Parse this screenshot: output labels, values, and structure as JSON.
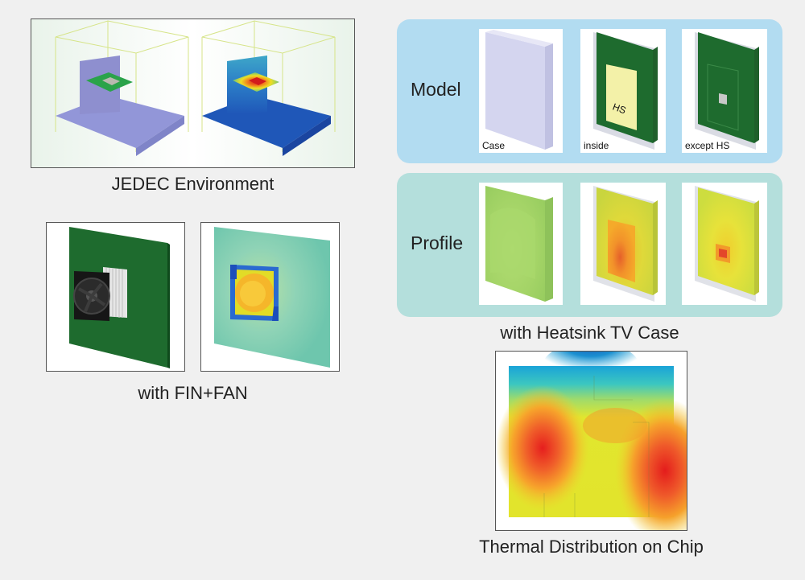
{
  "jedec": {
    "caption": "JEDEC Environment"
  },
  "fin_fan": {
    "caption": "with FIN+FAN"
  },
  "heatsink": {
    "caption": "with Heatsink TV Case",
    "model_label": "Model",
    "profile_label": "Profile",
    "model_views": [
      "Case",
      "inside",
      "except HS"
    ],
    "inside_hs_tag": "HS"
  },
  "thermal": {
    "caption": "Thermal Distribution on Chip"
  },
  "colors": {
    "model_panel": "#b2dcf1",
    "profile_panel": "#b4dfdc",
    "board_green": "#1e6b2e",
    "case_lavender": "#cfd0ec",
    "jedec_blue": "#1f57b8"
  }
}
